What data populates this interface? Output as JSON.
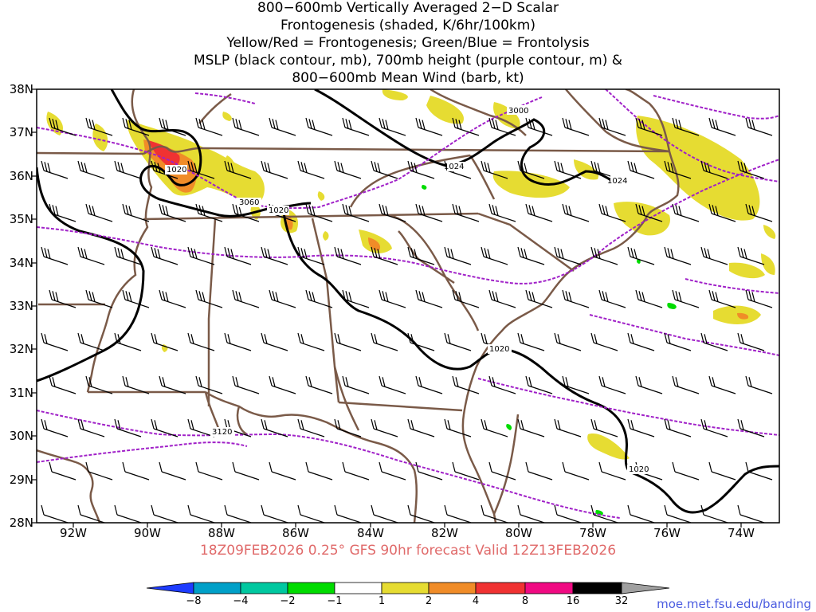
{
  "title": {
    "lines": [
      "800−600mb Vertically Averaged 2−D Scalar",
      "Frontogenesis (shaded, K/6hr/100km)",
      "Yellow/Red = Frontogenesis;  Green/Blue = Frontolysis",
      "MSLP (black contour, mb), 700mb height (purple contour, m) &",
      "800−600mb Mean Wind (barb, kt)"
    ]
  },
  "map": {
    "lat_labels": [
      "38N",
      "37N",
      "36N",
      "35N",
      "34N",
      "33N",
      "32N",
      "31N",
      "30N",
      "29N",
      "28N"
    ],
    "lon_labels": [
      "92W",
      "90W",
      "88W",
      "86W",
      "84W",
      "82W",
      "80W",
      "78W",
      "76W",
      "74W"
    ],
    "contour_labels": {
      "mslp": [
        "1020",
        "1020",
        "1024",
        "1024",
        "1020",
        "1020"
      ],
      "height": [
        "3000",
        "3060",
        "3120"
      ]
    },
    "colors": {
      "state_lines": "#7a5a48",
      "mslp": "#000000",
      "height": "#a020c8",
      "barb": "#000000"
    }
  },
  "footer": {
    "text": "18Z09FEB2026 0.25° GFS 90hr forecast Valid 12Z13FEB2026"
  },
  "colorbar": {
    "labels": [
      "−8",
      "−4",
      "−2",
      "−1",
      "1",
      "2",
      "4",
      "8",
      "16",
      "32"
    ],
    "colors": [
      "#1e3cff",
      "#00a0c8",
      "#00c8a0",
      "#00dc00",
      "#ffffff",
      "#e6dc32",
      "#f08c28",
      "#f03232",
      "#f00a82",
      "#000000",
      "#a0a0a0"
    ]
  },
  "credit": "moe.met.fsu.edu/banding"
}
